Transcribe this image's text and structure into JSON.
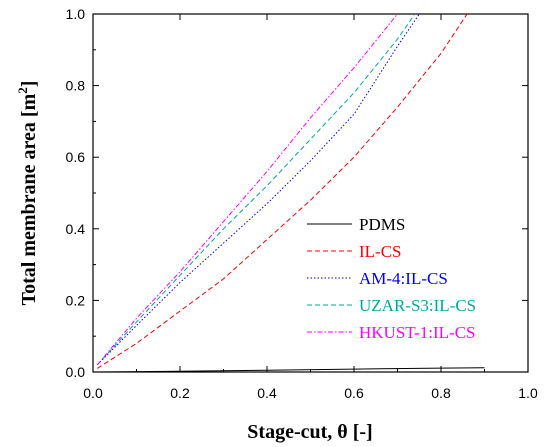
{
  "chart_data": {
    "type": "line",
    "xlabel": "Stage-cut, θ [-]",
    "ylabel_main": "Total membrane area [m",
    "ylabel_sup": "2",
    "ylabel_end": "]",
    "xlim": [
      0.0,
      1.0
    ],
    "ylim": [
      0.0,
      1.0
    ],
    "xticks": [
      "0.0",
      "0.2",
      "0.4",
      "0.6",
      "0.8",
      "1.0"
    ],
    "yticks": [
      "0.0",
      "0.2",
      "0.4",
      "0.6",
      "0.8",
      "1.0"
    ],
    "grid": false,
    "legend_position": "center-right",
    "series": [
      {
        "name": "PDMS",
        "color": "#000000",
        "style": "solid",
        "x": [
          0.01,
          0.2,
          0.4,
          0.6,
          0.8,
          0.9
        ],
        "y": [
          0.0,
          0.002,
          0.005,
          0.008,
          0.011,
          0.012
        ]
      },
      {
        "name": "IL-CS",
        "color": "#ff0000",
        "style": "dashed",
        "x": [
          0.01,
          0.1,
          0.2,
          0.3,
          0.4,
          0.5,
          0.6,
          0.7,
          0.8,
          0.86
        ],
        "y": [
          0.01,
          0.08,
          0.17,
          0.26,
          0.37,
          0.48,
          0.6,
          0.74,
          0.89,
          1.0
        ]
      },
      {
        "name": "AM-4:IL-CS",
        "color": "#0000ff",
        "style": "dotted",
        "x": [
          0.01,
          0.1,
          0.2,
          0.3,
          0.4,
          0.5,
          0.6,
          0.7,
          0.75
        ],
        "y": [
          0.02,
          0.13,
          0.25,
          0.36,
          0.47,
          0.59,
          0.72,
          0.91,
          1.0
        ]
      },
      {
        "name": "UZAR-S3:IL-CS",
        "color": "#00a89a",
        "style": "dashed",
        "x": [
          0.01,
          0.1,
          0.2,
          0.3,
          0.4,
          0.5,
          0.6,
          0.7,
          0.74
        ],
        "y": [
          0.02,
          0.14,
          0.27,
          0.4,
          0.52,
          0.65,
          0.78,
          0.93,
          1.0
        ]
      },
      {
        "name": "HKUST-1:IL-CS",
        "color": "#ff00ff",
        "style": "dashdot",
        "x": [
          0.01,
          0.1,
          0.2,
          0.3,
          0.4,
          0.5,
          0.6,
          0.7
        ],
        "y": [
          0.02,
          0.15,
          0.28,
          0.42,
          0.56,
          0.71,
          0.85,
          1.0
        ]
      }
    ]
  }
}
